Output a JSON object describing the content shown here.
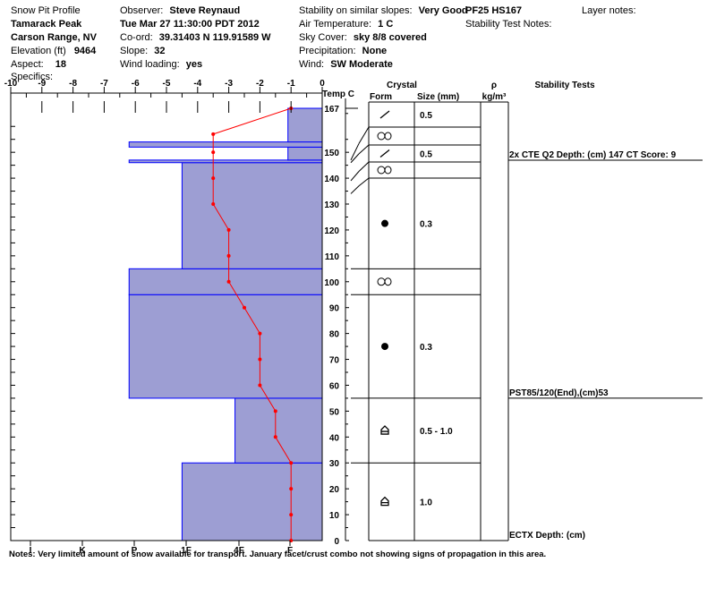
{
  "header": {
    "title": "Snow Pit Profile",
    "location": "Tamarack Peak",
    "range": "Carson Range, NV",
    "elevation_label": "Elevation (ft)",
    "elevation": "9464",
    "aspect_label": "Aspect:",
    "aspect": "18",
    "specifics_label": "Specifics:",
    "observer_label": "Observer:",
    "observer": "Steve Reynaud",
    "datetime": "Tue Mar 27 11:30:00 PDT 2012",
    "coord_label": "Co-ord:",
    "coord": "39.31403 N 119.91589 W",
    "slope_label": "Slope:",
    "slope": "32",
    "wind_loading_label": "Wind loading:",
    "wind_loading": "yes",
    "stability_label": "Stability on similar slopes:",
    "stability": "Very Good",
    "air_temp_label": "Air Temperature:",
    "air_temp": "1 C",
    "sky_label": "Sky Cover:",
    "sky": "sky 8/8 covered",
    "precip_label": "Precipitation:",
    "precip": "None",
    "wind_label": "Wind:",
    "wind": "SW Moderate",
    "pit_id": "PF25 HS167",
    "stability_notes_label": "Stability Test Notes:",
    "layer_notes_label": "Layer notes:"
  },
  "columns": {
    "temp": "Temp C",
    "crystal": "Crystal",
    "form": "Form",
    "size": "Size (mm)",
    "rho": "ρ",
    "rho_unit": "kg/m³",
    "stability_tests": "Stability Tests"
  },
  "notes": "Notes:  Very limited amount of snow available for transport.  January facet/crust combo not showing signs of propagation in this area.",
  "colors": {
    "layer_fill": "#9d9ed3",
    "layer_edge": "#0000ff",
    "temp_line": "#ff0000"
  },
  "chart_data": {
    "type": "snow_profile",
    "temperature_axis": {
      "ticks": [
        "-10",
        "-9",
        "-8",
        "-7",
        "-6",
        "-5",
        "-4",
        "-3",
        "-2",
        "-1",
        "0"
      ],
      "range": [
        -10,
        0
      ]
    },
    "hardness_axis": {
      "ticks": [
        "I",
        "K",
        "P",
        "1F",
        "4F",
        "F"
      ]
    },
    "height_axis": {
      "ticks": [
        "0",
        "10",
        "20",
        "30",
        "40",
        "50",
        "60",
        "70",
        "80",
        "90",
        "100",
        "110",
        "120",
        "130",
        "140",
        "150",
        "167"
      ],
      "range": [
        0,
        167
      ],
      "unit": "cm"
    },
    "hardness_layers": [
      {
        "bottom": 0,
        "top": 30,
        "hardness_cols": 4.5
      },
      {
        "bottom": 30,
        "top": 55,
        "hardness_cols": 2.8
      },
      {
        "bottom": 55,
        "top": 95,
        "hardness_cols": 6.2
      },
      {
        "bottom": 95,
        "top": 105,
        "hardness_cols": 6.2
      },
      {
        "bottom": 105,
        "top": 146,
        "hardness_cols": 4.5
      },
      {
        "bottom": 146,
        "top": 147,
        "hardness_cols": 6.2
      },
      {
        "bottom": 147,
        "top": 152,
        "hardness_cols": 1.1
      },
      {
        "bottom": 152,
        "top": 154,
        "hardness_cols": 6.2
      },
      {
        "bottom": 154,
        "top": 167,
        "hardness_cols": 1.1
      }
    ],
    "temperature_profile": [
      {
        "height": 167,
        "temp": -1.0
      },
      {
        "height": 157,
        "temp": -3.5
      },
      {
        "height": 150,
        "temp": -3.5
      },
      {
        "height": 140,
        "temp": -3.5
      },
      {
        "height": 130,
        "temp": -3.5
      },
      {
        "height": 120,
        "temp": -3.0
      },
      {
        "height": 110,
        "temp": -3.0
      },
      {
        "height": 100,
        "temp": -3.0
      },
      {
        "height": 90,
        "temp": -2.5
      },
      {
        "height": 80,
        "temp": -2.0
      },
      {
        "height": 70,
        "temp": -2.0
      },
      {
        "height": 60,
        "temp": -2.0
      },
      {
        "height": 50,
        "temp": -1.5
      },
      {
        "height": 40,
        "temp": -1.5
      },
      {
        "height": 30,
        "temp": -1.0
      },
      {
        "height": 20,
        "temp": -1.0
      },
      {
        "height": 10,
        "temp": -1.0
      },
      {
        "height": 0,
        "temp": -1.0
      }
    ],
    "crystal_layers": [
      {
        "form": "decomposing",
        "size": "0.5",
        "bottom": 147,
        "top": 167
      },
      {
        "form": "rounded-faceted",
        "size": "",
        "bottom": 146,
        "top": 147
      },
      {
        "form": "decomposing",
        "size": "0.5",
        "bottom": 139,
        "top": 146
      },
      {
        "form": "rounded-faceted",
        "size": "",
        "bottom": 134,
        "top": 139
      },
      {
        "form": "rounded",
        "size": "0.3",
        "bottom": 105,
        "top": 134
      },
      {
        "form": "rounded-faceted",
        "size": "",
        "bottom": 95,
        "top": 105
      },
      {
        "form": "rounded",
        "size": "0.3",
        "bottom": 55,
        "top": 95
      },
      {
        "form": "depth-hoar",
        "size": "0.5 - 1.0",
        "bottom": 30,
        "top": 55
      },
      {
        "form": "depth-hoar",
        "size": "1.0",
        "bottom": 0,
        "top": 30
      }
    ],
    "stability_tests": [
      {
        "text": "2x CTE Q2 Depth: (cm) 147 CT Score: 9",
        "height": 147
      },
      {
        "text": "PST85/120(End),(cm)53",
        "height": 55
      },
      {
        "text": "ECTX  Depth: (cm)",
        "height": 0
      }
    ]
  }
}
